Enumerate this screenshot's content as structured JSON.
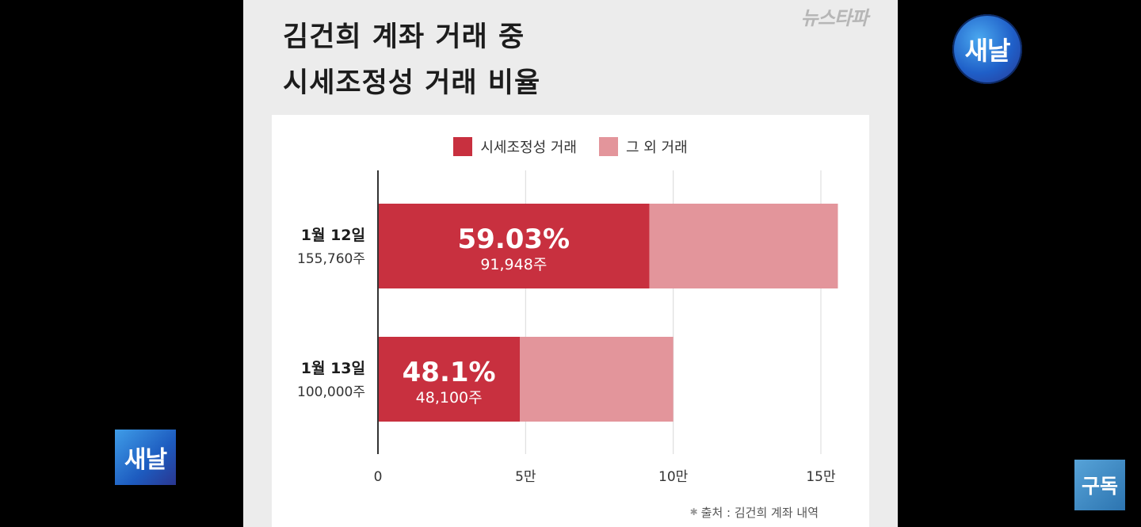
{
  "title": [
    "김건희 계좌 거래 중",
    "시세조정성 거래 비율"
  ],
  "brand": "뉴스타파",
  "logo_round": "새날",
  "logo_square": "새날",
  "subscribe": "구독",
  "source": "출처 : 김건희 계좌 내역",
  "colors": {
    "manipulation": "#c8303f",
    "other": "#e3959b",
    "grid": "#d9d9d9",
    "axis": "#333333"
  },
  "chart_data": {
    "type": "bar",
    "orientation": "horizontal",
    "stacked": true,
    "categories": [
      "1월 12일",
      "1월 13일"
    ],
    "category_totals": [
      "155,760주",
      "100,000주"
    ],
    "totals": [
      155760,
      100000
    ],
    "series": [
      {
        "name": "시세조정성 거래",
        "values": [
          91948,
          48100
        ],
        "labels": [
          "59.03%",
          "48.1%"
        ],
        "sublabels": [
          "91,948주",
          "48,100주"
        ]
      },
      {
        "name": "그 외 거래",
        "values": [
          63812,
          51900
        ]
      }
    ],
    "xlim": [
      0,
      150000
    ],
    "xticks": [
      0,
      50000,
      100000,
      150000
    ],
    "xtick_labels": [
      "0",
      "5만",
      "10만",
      "15만"
    ],
    "grid": true,
    "legend": "top-center"
  }
}
